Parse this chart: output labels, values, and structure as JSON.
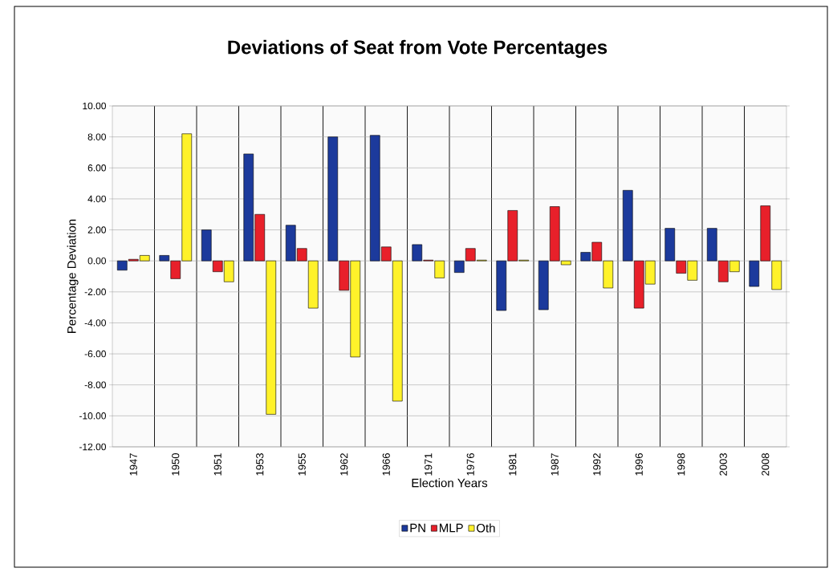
{
  "chart_data": {
    "type": "bar",
    "title": "Deviations of Seat from Vote Percentages",
    "xlabel": "Election Years",
    "ylabel": "Percentage Deviation",
    "categories": [
      "1947",
      "1950",
      "1951",
      "1953",
      "1955",
      "1962",
      "1966",
      "1971",
      "1976",
      "1981",
      "1987",
      "1992",
      "1996",
      "1998",
      "2003",
      "2008"
    ],
    "series": [
      {
        "name": "PN",
        "color": "#1c3a9c",
        "values": [
          -0.6,
          0.35,
          2.0,
          6.9,
          2.3,
          8.0,
          8.1,
          1.05,
          -0.75,
          -3.2,
          -3.15,
          0.55,
          4.55,
          2.1,
          2.1,
          -1.65
        ]
      },
      {
        "name": "MLP",
        "color": "#e8202a",
        "values": [
          0.1,
          -1.15,
          -0.7,
          3.0,
          0.8,
          -1.9,
          0.9,
          0.05,
          0.8,
          3.25,
          3.5,
          1.2,
          -3.05,
          -0.8,
          -1.35,
          3.55
        ]
      },
      {
        "name": "Oth",
        "color": "#fff22a",
        "values": [
          0.35,
          8.2,
          -1.35,
          -9.9,
          -3.05,
          -6.2,
          -9.05,
          -1.1,
          0.05,
          0.05,
          -0.25,
          -1.75,
          -1.5,
          -1.25,
          -0.7,
          -1.85
        ]
      }
    ],
    "ylim": [
      -12,
      10
    ],
    "yticks": [
      {
        "value": -12,
        "label": "-12.00"
      },
      {
        "value": -10,
        "label": "-10.00"
      },
      {
        "value": -8,
        "label": "-8.00"
      },
      {
        "value": -6,
        "label": "-6.00"
      },
      {
        "value": -4,
        "label": "-4.00"
      },
      {
        "value": -2,
        "label": "-2.00"
      },
      {
        "value": 0,
        "label": "0.00"
      },
      {
        "value": 2,
        "label": "2.00"
      },
      {
        "value": 4,
        "label": "4.00"
      },
      {
        "value": 6,
        "label": "6.00"
      },
      {
        "value": 8,
        "label": "8.00"
      },
      {
        "value": 10,
        "label": "10.00"
      }
    ],
    "grid": "y",
    "legend": "bottom"
  }
}
